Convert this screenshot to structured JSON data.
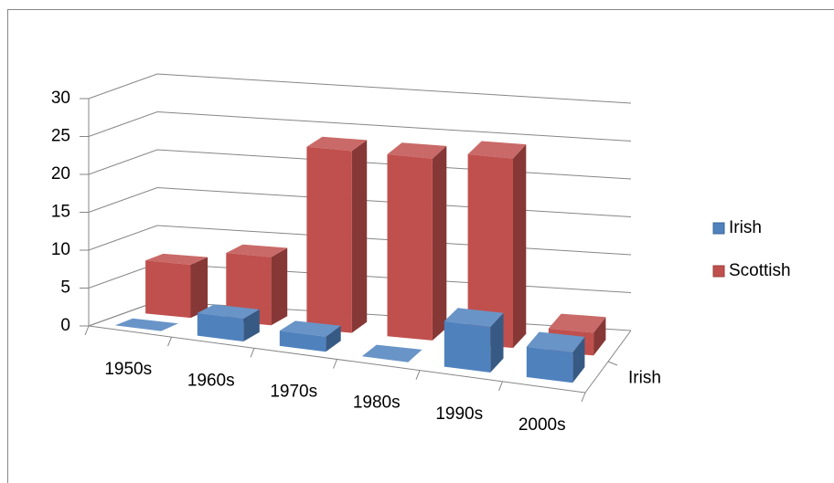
{
  "chart_data": {
    "type": "bar3d",
    "categories": [
      "1950s",
      "1960s",
      "1970s",
      "1980s",
      "1990s",
      "2000s"
    ],
    "series": [
      {
        "name": "Irish",
        "color": "#4f81bd",
        "values": [
          0,
          3,
          2,
          0,
          6,
          4
        ]
      },
      {
        "name": "Scottish",
        "color": "#c0504d",
        "values": [
          7,
          9,
          24,
          24,
          25,
          3
        ]
      }
    ],
    "ylim": [
      0,
      30
    ],
    "yticks": [
      0,
      5,
      10,
      15,
      20,
      25,
      30
    ],
    "grid": true,
    "legend": "right"
  }
}
